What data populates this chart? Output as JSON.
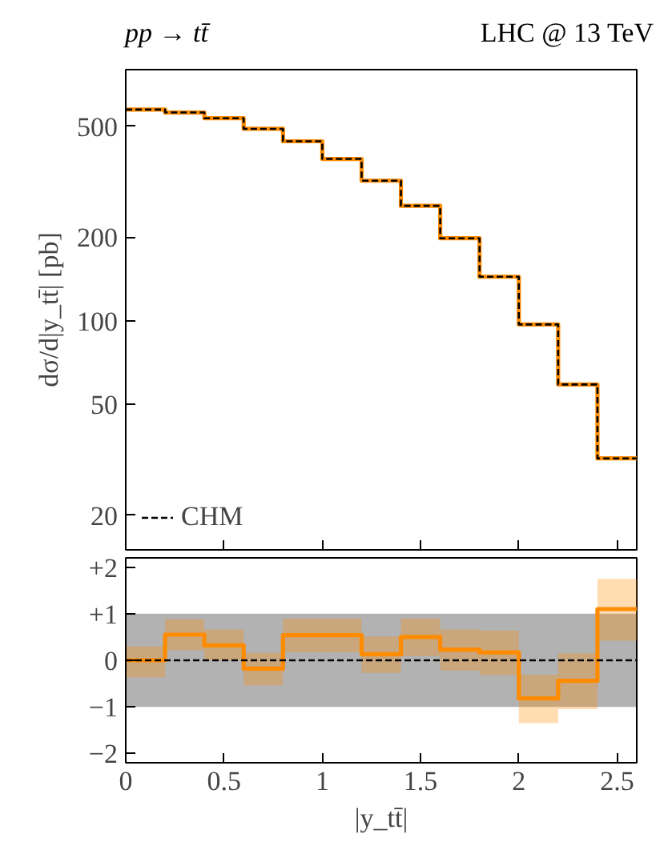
{
  "chart_data": [
    {
      "type": "step",
      "title": "pp → tt̄",
      "annotations": [
        "LHC @ 13 TeV"
      ],
      "ylabel": "dσ/d|y_tt̄| [pb]",
      "x": [
        0,
        0.2,
        0.4,
        0.6,
        0.8,
        1.0,
        1.2,
        1.4,
        1.6,
        1.8,
        2.0,
        2.2,
        2.4,
        2.6
      ],
      "series": [
        {
          "color": "#ff8c00",
          "line_style": "solid",
          "values": [
            575,
            561,
            535,
            490,
            442,
            382,
            319,
            259,
            198,
            144,
            97,
            59,
            32,
            32
          ]
        },
        {
          "name": "CHM",
          "color": "#000000",
          "line_style": "dashed",
          "values": [
            575,
            561,
            535,
            490,
            442,
            382,
            319,
            259,
            198,
            144,
            97,
            59,
            32,
            32
          ]
        }
      ],
      "log": true,
      "xlim": [
        0,
        2.6
      ],
      "xticks": [
        0,
        0.5,
        1,
        1.5,
        2,
        2.5
      ],
      "ylim": [
        15,
        800
      ],
      "yticks": [
        20,
        50,
        100,
        200,
        500
      ],
      "tick_labels": "y",
      "legend": "bottom left",
      "grid": false
    },
    {
      "type": "step",
      "xlabel": "|y_tt̄|",
      "x": [
        0,
        0.2,
        0.4,
        0.6,
        0.8,
        1.0,
        1.2,
        1.4,
        1.6,
        1.8,
        2.0,
        2.2,
        2.4,
        2.6
      ],
      "series": [
        {
          "color": "#000000",
          "line_style": "dashed",
          "values": [
            0,
            0,
            0,
            0,
            0,
            0,
            0,
            0,
            0,
            0,
            0,
            0,
            0,
            0
          ],
          "lower": [
            -1,
            -1,
            -1,
            -1,
            -1,
            -1,
            -1,
            -1,
            -1,
            -1,
            -1,
            -1,
            -1,
            -1
          ],
          "upper": [
            1,
            1,
            1,
            1,
            1,
            1,
            1,
            1,
            1,
            1,
            1,
            1,
            1,
            1
          ]
        },
        {
          "color": "#ff8c00",
          "line_style": "solid",
          "values": [
            0,
            0.55,
            0.32,
            -0.18,
            0.54,
            0.54,
            0.13,
            0.5,
            0.23,
            0.17,
            -0.82,
            -0.44,
            1.1,
            1.1
          ],
          "lower": [
            -0.37,
            0.22,
            0,
            -0.54,
            0.17,
            0.17,
            -0.27,
            0.09,
            -0.22,
            -0.32,
            -1.35,
            -1.05,
            0.42,
            0.42
          ],
          "upper": [
            0.3,
            0.88,
            0.66,
            0.16,
            0.9,
            0.9,
            0.51,
            0.9,
            0.66,
            0.64,
            -0.31,
            0.15,
            1.75,
            1.75
          ]
        }
      ],
      "xlim": [
        0,
        2.6
      ],
      "xticks": [
        0,
        0.5,
        1,
        1.5,
        2,
        2.5
      ],
      "ylim": [
        -2.2,
        2.2
      ],
      "yticks": [
        {
          "value": -2,
          "label": "−2"
        },
        {
          "value": -1,
          "label": "−1"
        },
        0,
        {
          "value": 1,
          "label": "+1"
        },
        {
          "value": 2,
          "label": "+2"
        }
      ],
      "grid": false
    }
  ]
}
